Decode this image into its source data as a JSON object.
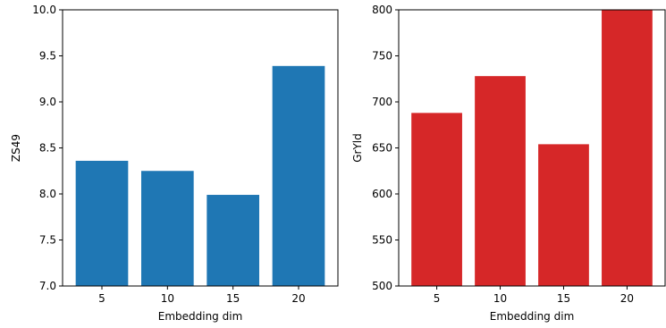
{
  "chart_data": [
    {
      "type": "bar",
      "categories": [
        "5",
        "10",
        "15",
        "20"
      ],
      "values": [
        8.36,
        8.25,
        7.99,
        9.39
      ],
      "xlabel": "Embedding dim",
      "ylabel": "ZS49",
      "ylim": [
        7.0,
        10.0
      ],
      "yticks": [
        "7.0",
        "7.5",
        "8.0",
        "8.5",
        "9.0",
        "9.5",
        "10.0"
      ],
      "color": "#1f77b4",
      "grid": false
    },
    {
      "type": "bar",
      "categories": [
        "5",
        "10",
        "15",
        "20"
      ],
      "values": [
        688,
        728,
        654,
        800
      ],
      "xlabel": "Embedding dim",
      "ylabel": "GrYld",
      "ylim": [
        500,
        800
      ],
      "yticks": [
        "500",
        "550",
        "600",
        "650",
        "700",
        "750",
        "800"
      ],
      "color": "#d62728",
      "grid": false
    }
  ]
}
